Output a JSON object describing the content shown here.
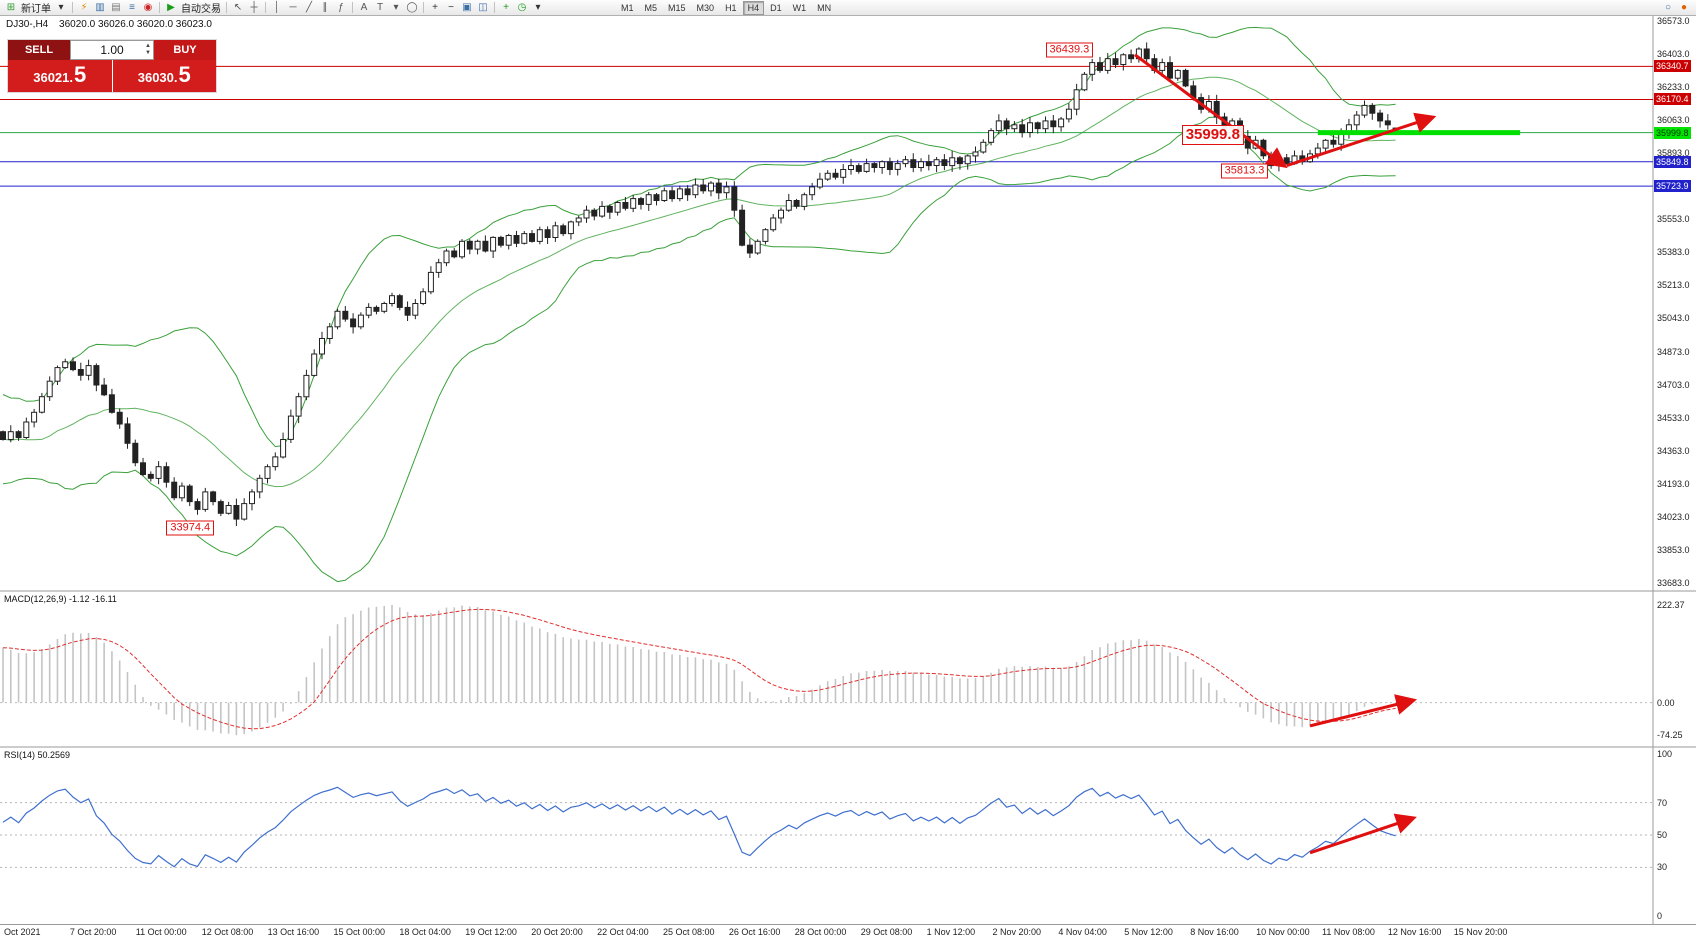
{
  "toolbar": {
    "groups": [
      {
        "items": [
          {
            "glyph": "⊞",
            "color": "#2f9e2f",
            "name": "new-chart-icon"
          },
          {
            "label": "新订单",
            "name": "new-order-button"
          },
          {
            "glyph": "▾",
            "color": "#333333",
            "name": "new-order-dropdown-icon"
          }
        ]
      },
      {
        "items": [
          {
            "glyph": "⚡",
            "color": "#d89000",
            "name": "quick-trade-icon"
          },
          {
            "glyph": "▥",
            "color": "#3a6ea5",
            "name": "market-watch-icon"
          },
          {
            "glyph": "▤",
            "color": "#777777",
            "name": "data-window-icon"
          },
          {
            "glyph": "≡",
            "color": "#3a6ea5",
            "name": "navigator-icon"
          },
          {
            "glyph": "◉",
            "color": "#cc2222",
            "name": "terminal-icon"
          }
        ]
      },
      {
        "items": [
          {
            "glyph": "▶",
            "color": "#1a9e1a",
            "name": "autotrading-icon"
          },
          {
            "label": "自动交易",
            "name": "autotrading-button"
          }
        ]
      },
      {
        "items": [
          {
            "glyph": "↖",
            "color": "#555555",
            "name": "cursor-icon"
          },
          {
            "glyph": "┼",
            "color": "#555555",
            "name": "crosshair-icon"
          }
        ]
      },
      {
        "items": [
          {
            "glyph": "│",
            "color": "#555555",
            "name": "vertical-line-icon"
          },
          {
            "glyph": "─",
            "color": "#555555",
            "name": "horizontal-line-icon"
          },
          {
            "glyph": "╱",
            "color": "#555555",
            "name": "trendline-icon"
          },
          {
            "glyph": "∥",
            "color": "#555555",
            "name": "channel-icon"
          },
          {
            "glyph": "ƒ",
            "color": "#555555",
            "name": "fibonacci-icon"
          }
        ]
      },
      {
        "items": [
          {
            "glyph": "A",
            "color": "#555555",
            "name": "text-tool-icon"
          },
          {
            "glyph": "T",
            "color": "#555555",
            "name": "text-label-icon"
          },
          {
            "glyph": "▾",
            "color": "#555555",
            "name": "arrows-tool-icon"
          },
          {
            "glyph": "◯",
            "color": "#555555",
            "name": "shapes-tool-icon"
          }
        ]
      },
      {
        "items": [
          {
            "glyph": "+",
            "color": "#333333",
            "name": "zoom-in-icon"
          },
          {
            "glyph": "−",
            "color": "#333333",
            "name": "zoom-out-icon"
          },
          {
            "glyph": "▣",
            "color": "#3a6ea5",
            "name": "tile-windows-icon"
          },
          {
            "glyph": "◫",
            "color": "#3a6ea5",
            "name": "cascade-windows-icon"
          }
        ]
      },
      {
        "items": [
          {
            "glyph": "+",
            "color": "#1a9e1a",
            "name": "indicators-icon"
          },
          {
            "glyph": "◷",
            "color": "#1a9e1a",
            "name": "periods-icon"
          },
          {
            "glyph": "▾",
            "color": "#333333",
            "name": "templates-icon"
          }
        ]
      }
    ],
    "timeframes": [
      "M1",
      "M5",
      "M15",
      "M30",
      "H1",
      "H4",
      "D1",
      "W1",
      "MN"
    ],
    "active_timeframe": "H4",
    "right_icons": [
      {
        "glyph": "○",
        "color": "#3a6ea5",
        "name": "search-icon"
      },
      {
        "glyph": "●",
        "color": "#e06000",
        "name": "notification-icon"
      }
    ]
  },
  "trade_panel": {
    "sell_label": "SELL",
    "buy_label": "BUY",
    "lot": "1.00",
    "sell_price_main": "36021.",
    "sell_price_big": "5",
    "buy_price_main": "36030.",
    "buy_price_big": "5"
  },
  "chart": {
    "symbol_header": "DJ30-,H4",
    "ohlc_text": "36020.0 36026.0 36020.0 36023.0",
    "y_axis_labels": [
      "36573.0",
      "36403.0",
      "36233.0",
      "36063.0",
      "35893.0",
      "35723.0",
      "35553.0",
      "35383.0",
      "35213.0",
      "35043.0",
      "34873.0",
      "34703.0",
      "34533.0",
      "34363.0",
      "34193.0",
      "34023.0",
      "33853.0",
      "33683.0"
    ],
    "x_axis_labels": [
      "Oct 2021",
      "7 Oct 20:00",
      "11 Oct 00:00",
      "12 Oct 08:00",
      "13 Oct 16:00",
      "15 Oct 00:00",
      "18 Oct 04:00",
      "19 Oct 12:00",
      "20 Oct 20:00",
      "22 Oct 04:00",
      "25 Oct 08:00",
      "26 Oct 16:00",
      "28 Oct 00:00",
      "29 Oct 08:00",
      "1 Nov 12:00",
      "2 Nov 20:00",
      "4 Nov 04:00",
      "5 Nov 12:00",
      "8 Nov 16:00",
      "10 Nov 00:00",
      "11 Nov 08:00",
      "12 Nov 16:00",
      "15 Nov 20:00"
    ],
    "price_lines": [
      {
        "price": 36340.7,
        "label": "36340.7",
        "color": "#cc0000",
        "tag_bg": "#cc0000",
        "tag_fg": "#ffffff"
      },
      {
        "price": 36170.4,
        "label": "36170.4",
        "color": "#cc0000",
        "tag_bg": "#cc0000",
        "tag_fg": "#ffffff"
      },
      {
        "price": 35999.8,
        "label": "35999.8",
        "color": "#2aa84a",
        "tag_bg": "#00e400",
        "tag_fg": "#003300"
      },
      {
        "price": 35849.8,
        "label": "35849.8",
        "color": "#2222cc",
        "tag_bg": "#2222cc",
        "tag_fg": "#ffffff"
      },
      {
        "price": 35723.9,
        "label": "35723.9",
        "color": "#2222cc",
        "tag_bg": "#2222cc",
        "tag_fg": "#ffffff"
      }
    ],
    "annotations": [
      {
        "text": "36439.3",
        "i": 134,
        "price": 36425,
        "large": false
      },
      {
        "text": "35999.8",
        "i": 151.5,
        "price": 35990,
        "large": true
      },
      {
        "text": "35813.3",
        "i": 156.5,
        "price": 35800,
        "large": false
      },
      {
        "text": "33974.4",
        "i": 21,
        "price": 33965,
        "large": false
      }
    ],
    "arrows": [
      {
        "i1": 145.5,
        "p1": 36400,
        "i2": 164.5,
        "p2": 35835
      },
      {
        "i1": 165,
        "p1": 35830,
        "i2": 183.5,
        "p2": 36075
      }
    ],
    "green_segment": {
      "price": 35999.8,
      "i1": 169,
      "i2": 195
    }
  },
  "macd": {
    "name": "MACD(12,26,9)",
    "values": "-1.12 -16.11",
    "axis": [
      "222.37",
      "0.00",
      "-74.25"
    ],
    "arrow": {
      "i1": 168,
      "v1": -53,
      "i2": 181,
      "v2": 4
    }
  },
  "rsi": {
    "name": "RSI(14)",
    "value": "50.2569",
    "axis": [
      "100",
      "70",
      "50",
      "30",
      "0"
    ],
    "levels": [
      70,
      50,
      30
    ],
    "arrow": {
      "i1": 168,
      "v1": 39,
      "i2": 181,
      "v2": 60
    }
  },
  "chart_data": {
    "type": "candlestick",
    "symbol": "DJ30-",
    "period": "H4",
    "y_range": [
      33645,
      36600
    ],
    "x_range_labels": [
      "4 Oct 2021",
      "15 Nov 2021 20:00"
    ],
    "last_bar": {
      "open": 36020.0,
      "high": 36026.0,
      "low": 36020.0,
      "close": 36023.0
    },
    "swing_points": {
      "annotated_high": 36439.3,
      "annotated_low_left": 33974.4,
      "annotated_low_right": 35813.3,
      "annotated_level": 35999.8
    },
    "resistance_lines": [
      36340.7,
      36170.4
    ],
    "support_lines": [
      35849.8,
      35723.9
    ],
    "close": [
      34420,
      34460,
      34430,
      34510,
      34560,
      34640,
      34720,
      34790,
      34820,
      34780,
      34750,
      34800,
      34700,
      34650,
      34560,
      34500,
      34400,
      34300,
      34240,
      34220,
      34280,
      34200,
      34120,
      34180,
      34100,
      34060,
      34150,
      34100,
      34040,
      34080,
      34010,
      34090,
      34150,
      34220,
      34280,
      34330,
      34420,
      34540,
      34640,
      34750,
      34860,
      34940,
      35000,
      35080,
      35040,
      35000,
      35060,
      35100,
      35080,
      35120,
      35160,
      35100,
      35060,
      35120,
      35180,
      35280,
      35330,
      35390,
      35360,
      35440,
      35400,
      35440,
      35390,
      35460,
      35420,
      35470,
      35430,
      35480,
      35440,
      35500,
      35460,
      35520,
      35480,
      35540,
      35560,
      35600,
      35570,
      35620,
      35590,
      35640,
      35610,
      35660,
      35630,
      35680,
      35650,
      35700,
      35660,
      35710,
      35680,
      35730,
      35700,
      35740,
      35690,
      35720,
      35600,
      35420,
      35380,
      35440,
      35500,
      35560,
      35600,
      35650,
      35620,
      35680,
      35720,
      35760,
      35790,
      35770,
      35810,
      35830,
      35800,
      35840,
      35820,
      35850,
      35810,
      35840,
      35860,
      35820,
      35850,
      35830,
      35860,
      35830,
      35870,
      35840,
      35880,
      35900,
      35950,
      36010,
      36060,
      36020,
      36040,
      36000,
      36050,
      36020,
      36060,
      36030,
      36070,
      36120,
      36220,
      36300,
      36360,
      36320,
      36380,
      36350,
      36400,
      36380,
      36430,
      36380,
      36320,
      36360,
      36280,
      36320,
      36240,
      36180,
      36120,
      36160,
      36080,
      36020,
      36060,
      35980,
      35920,
      35960,
      35880,
      35830,
      35870,
      35840,
      35880,
      35850,
      35890,
      35920,
      35960,
      35940,
      35990,
      36040,
      36090,
      36140,
      36100,
      36060,
      36040,
      36023
    ],
    "overrides": {
      "30": {
        "l": 33974.4
      },
      "146": {
        "h": 36439.3
      },
      "163": {
        "l": 35813.3
      },
      "179": {
        "o": 36020.0,
        "h": 36026.0,
        "l": 36020.0,
        "c": 36023.0
      }
    },
    "indicators": [
      {
        "name": "Bollinger Bands",
        "period": 20,
        "deviation": 2,
        "color": "#3aa03a"
      },
      {
        "name": "MACD",
        "fast": 12,
        "slow": 26,
        "signal": 9,
        "current_macd": -1.12,
        "current_signal": -16.11,
        "axis_max": 222.37,
        "axis_min": -74.25
      },
      {
        "name": "RSI",
        "period": 14,
        "current": 50.2569
      }
    ]
  }
}
